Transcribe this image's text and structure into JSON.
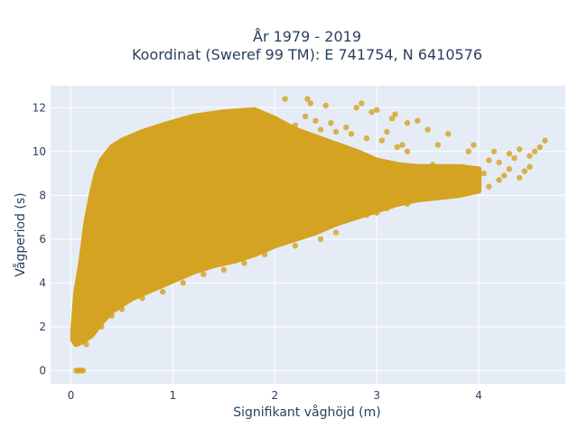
{
  "chart_data": {
    "type": "scatter",
    "title": [
      "År 1979 - 2019",
      "Koordinat (Sweref 99 TM): E 741754, N 6410576"
    ],
    "xlabel": "Signifikant våghöjd (m)",
    "ylabel": "Vågperiod (s)",
    "xlim": [
      -0.2,
      4.85
    ],
    "ylim": [
      -0.6,
      13.0
    ],
    "x_ticks": [
      0,
      1,
      2,
      3,
      4
    ],
    "y_ticks": [
      0,
      2,
      4,
      6,
      8,
      10,
      12
    ],
    "grid": true,
    "legend": "none",
    "marker_color": "#d4a321",
    "plot_bg": "#e5ecf6",
    "envelope_upper": [
      [
        0.02,
        1.8
      ],
      [
        0.05,
        3.6
      ],
      [
        0.1,
        5.0
      ],
      [
        0.15,
        6.8
      ],
      [
        0.2,
        8.0
      ],
      [
        0.25,
        9.0
      ],
      [
        0.3,
        9.6
      ],
      [
        0.4,
        10.2
      ],
      [
        0.5,
        10.5
      ],
      [
        0.7,
        10.9
      ],
      [
        0.9,
        11.2
      ],
      [
        1.2,
        11.6
      ],
      [
        1.5,
        11.8
      ],
      [
        1.8,
        11.9
      ],
      [
        2.0,
        11.5
      ],
      [
        2.2,
        11.0
      ],
      [
        2.5,
        10.5
      ],
      [
        2.8,
        10.0
      ],
      [
        3.0,
        9.6
      ],
      [
        3.2,
        9.4
      ],
      [
        3.4,
        9.3
      ],
      [
        3.6,
        9.3
      ],
      [
        3.8,
        9.3
      ],
      [
        4.0,
        9.2
      ]
    ],
    "envelope_lower": [
      [
        0.02,
        1.4
      ],
      [
        0.05,
        1.2
      ],
      [
        0.1,
        1.3
      ],
      [
        0.2,
        1.6
      ],
      [
        0.3,
        2.2
      ],
      [
        0.4,
        2.7
      ],
      [
        0.5,
        3.0
      ],
      [
        0.6,
        3.3
      ],
      [
        0.8,
        3.7
      ],
      [
        1.0,
        4.1
      ],
      [
        1.2,
        4.5
      ],
      [
        1.4,
        4.8
      ],
      [
        1.6,
        5.0
      ],
      [
        1.8,
        5.3
      ],
      [
        2.0,
        5.7
      ],
      [
        2.2,
        6.0
      ],
      [
        2.4,
        6.3
      ],
      [
        2.6,
        6.7
      ],
      [
        2.8,
        7.0
      ],
      [
        3.0,
        7.3
      ],
      [
        3.2,
        7.6
      ],
      [
        3.4,
        7.8
      ],
      [
        3.6,
        7.9
      ],
      [
        3.8,
        8.0
      ],
      [
        4.0,
        8.2
      ]
    ],
    "points": [
      [
        0.05,
        0.0
      ],
      [
        0.08,
        0.0
      ],
      [
        0.1,
        0.0
      ],
      [
        0.12,
        0.0
      ],
      [
        0.07,
        0.0
      ],
      [
        2.1,
        12.4
      ],
      [
        2.32,
        12.4
      ],
      [
        2.35,
        12.2
      ],
      [
        2.5,
        12.1
      ],
      [
        2.8,
        12.0
      ],
      [
        2.85,
        12.2
      ],
      [
        2.95,
        11.8
      ],
      [
        3.0,
        11.9
      ],
      [
        3.15,
        11.5
      ],
      [
        3.18,
        11.7
      ],
      [
        3.3,
        11.3
      ],
      [
        3.4,
        11.4
      ],
      [
        2.2,
        11.2
      ],
      [
        2.3,
        11.6
      ],
      [
        2.4,
        11.4
      ],
      [
        2.45,
        11.0
      ],
      [
        2.55,
        11.3
      ],
      [
        2.6,
        10.9
      ],
      [
        2.7,
        11.1
      ],
      [
        2.75,
        10.8
      ],
      [
        2.9,
        10.6
      ],
      [
        3.05,
        10.5
      ],
      [
        3.1,
        10.9
      ],
      [
        3.2,
        10.2
      ],
      [
        3.25,
        10.3
      ],
      [
        3.3,
        10.0
      ],
      [
        3.5,
        11.0
      ],
      [
        3.6,
        10.3
      ],
      [
        3.7,
        10.8
      ],
      [
        3.9,
        10.0
      ],
      [
        3.95,
        10.3
      ],
      [
        4.1,
        9.6
      ],
      [
        4.15,
        10.0
      ],
      [
        4.2,
        9.5
      ],
      [
        4.3,
        9.9
      ],
      [
        4.35,
        9.7
      ],
      [
        4.4,
        10.1
      ],
      [
        4.5,
        9.8
      ],
      [
        4.55,
        10.0
      ],
      [
        4.6,
        10.2
      ],
      [
        4.65,
        10.5
      ],
      [
        3.45,
        9.2
      ],
      [
        3.55,
        9.4
      ],
      [
        3.65,
        9.0
      ],
      [
        3.75,
        9.1
      ],
      [
        3.85,
        9.3
      ],
      [
        4.0,
        8.6
      ],
      [
        4.05,
        9.0
      ],
      [
        4.1,
        8.4
      ],
      [
        4.2,
        8.7
      ],
      [
        4.25,
        8.9
      ],
      [
        4.3,
        9.2
      ],
      [
        4.4,
        8.8
      ],
      [
        4.45,
        9.1
      ],
      [
        4.5,
        9.3
      ],
      [
        3.1,
        7.4
      ],
      [
        3.2,
        7.8
      ],
      [
        3.3,
        7.6
      ],
      [
        3.0,
        7.2
      ],
      [
        2.9,
        7.1
      ],
      [
        2.6,
        6.3
      ],
      [
        2.45,
        6.0
      ],
      [
        2.3,
        6.2
      ],
      [
        2.2,
        5.7
      ],
      [
        1.9,
        5.3
      ],
      [
        1.7,
        4.9
      ],
      [
        1.5,
        4.6
      ],
      [
        1.3,
        4.4
      ],
      [
        1.1,
        4.0
      ],
      [
        0.9,
        3.6
      ],
      [
        0.7,
        3.3
      ],
      [
        0.5,
        2.8
      ],
      [
        0.4,
        2.5
      ],
      [
        0.3,
        2.0
      ],
      [
        0.2,
        1.7
      ],
      [
        0.1,
        1.3
      ],
      [
        0.15,
        1.2
      ]
    ]
  }
}
